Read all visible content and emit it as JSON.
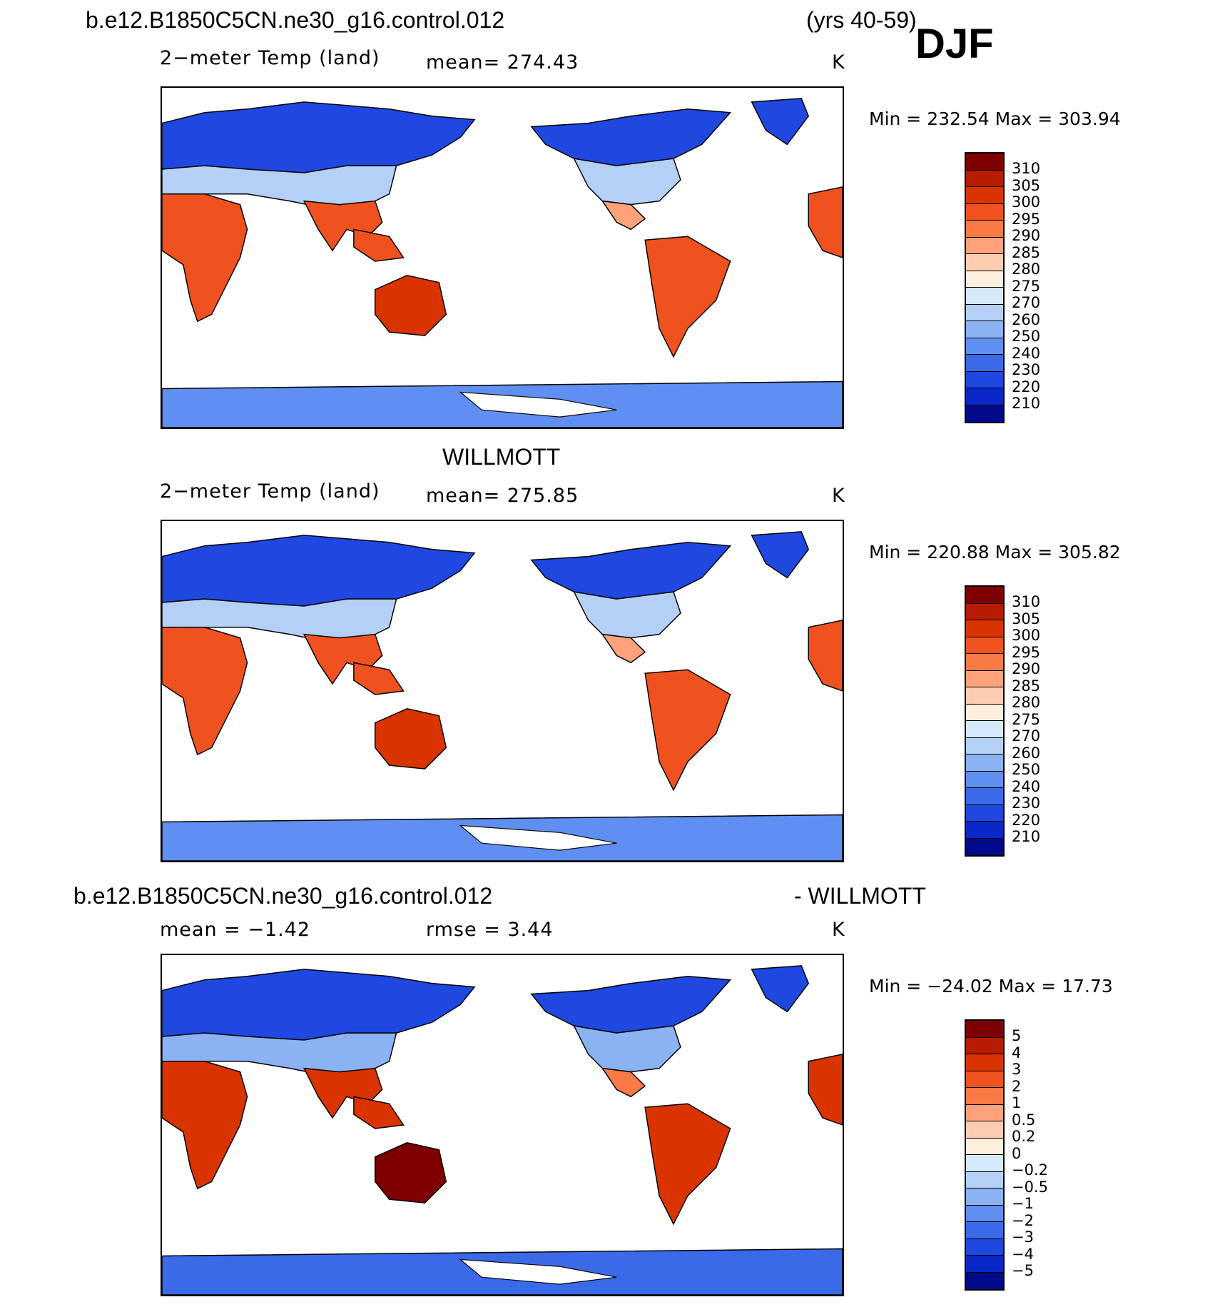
{
  "figure": {
    "case_title": "b.e12.B1850C5CN.ne30_g16.control.012",
    "years": "(yrs 40-59)",
    "season": "DJF"
  },
  "panels": [
    {
      "id": "model",
      "header": "",
      "variable": "2−meter Temp (land)",
      "stat": "mean=  274.43",
      "units": "K",
      "minmax": "Min  =  232.54  Max  =  303.94",
      "colorbar": {
        "labels": [
          "310",
          "305",
          "300",
          "295",
          "290",
          "285",
          "280",
          "275",
          "270",
          "260",
          "250",
          "240",
          "230",
          "220",
          "210"
        ],
        "colors": [
          "#7f0000",
          "#b71c00",
          "#d93400",
          "#f0521f",
          "#fa7a46",
          "#fda27a",
          "#fdcdb0",
          "#fdeedd",
          "#d6e9fb",
          "#b4d0f7",
          "#8bb2f2",
          "#5f8ff0",
          "#3a6ae8",
          "#1f48e0",
          "#0a28c8",
          "#000a8a"
        ]
      },
      "map_palette": {
        "cold": "#1f48e0",
        "cool": "#5f8ff0",
        "mild": "#b4d0f7",
        "warm": "#fda27a",
        "hot": "#f0521f",
        "veryhot": "#d93400"
      }
    },
    {
      "id": "obs",
      "header": "WILLMOTT",
      "variable": "2−meter Temp (land)",
      "stat": "mean=  275.85",
      "units": "K",
      "minmax": "Min  =  220.88  Max  =  305.82",
      "colorbar": {
        "labels": [
          "310",
          "305",
          "300",
          "295",
          "290",
          "285",
          "280",
          "275",
          "270",
          "260",
          "250",
          "240",
          "230",
          "220",
          "210"
        ],
        "colors": [
          "#7f0000",
          "#b71c00",
          "#d93400",
          "#f0521f",
          "#fa7a46",
          "#fda27a",
          "#fdcdb0",
          "#fdeedd",
          "#d6e9fb",
          "#b4d0f7",
          "#8bb2f2",
          "#5f8ff0",
          "#3a6ae8",
          "#1f48e0",
          "#0a28c8",
          "#000a8a"
        ]
      },
      "map_palette": {
        "cold": "#1f48e0",
        "cool": "#5f8ff0",
        "mild": "#b4d0f7",
        "warm": "#fda27a",
        "hot": "#f0521f",
        "veryhot": "#d93400"
      }
    },
    {
      "id": "diff",
      "header_left": "b.e12.B1850C5CN.ne30_g16.control.012",
      "header_right": "- WILLMOTT",
      "stat_mean": "mean =    −1.42",
      "stat_rmse": "rmse =     3.44",
      "units": "K",
      "minmax": "Min  =  −24.02  Max  =    17.73",
      "colorbar": {
        "labels": [
          "5",
          "4",
          "3",
          "2",
          "1",
          "0.5",
          "0.2",
          "0",
          "−0.2",
          "−0.5",
          "−1",
          "−2",
          "−3",
          "−4",
          "−5"
        ],
        "colors": [
          "#7f0000",
          "#b71c00",
          "#d93400",
          "#f0521f",
          "#fa7a46",
          "#fda27a",
          "#fdcdb0",
          "#fdeedd",
          "#d6e9fb",
          "#b4d0f7",
          "#8bb2f2",
          "#5f8ff0",
          "#3a6ae8",
          "#1f48e0",
          "#0a28c8",
          "#000a8a"
        ]
      },
      "map_palette": {
        "cold": "#1f48e0",
        "cool": "#3a6ae8",
        "mild": "#8bb2f2",
        "warm": "#fa7a46",
        "hot": "#d93400",
        "veryhot": "#7f0000"
      }
    }
  ]
}
